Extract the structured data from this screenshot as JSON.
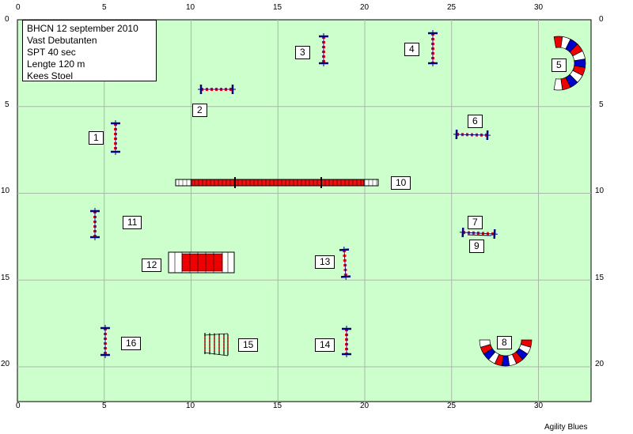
{
  "info": {
    "lines": [
      "BHCN 12 september 2010",
      "Vast Debutanten",
      "SPT 40 sec",
      "Lengte 120 m",
      "Kees Stoel"
    ]
  },
  "axes": {
    "x_ticks": [
      "0",
      "5",
      "10",
      "15",
      "20",
      "25",
      "30"
    ],
    "y_ticks": [
      "0",
      "5",
      "10",
      "15",
      "20"
    ],
    "x_range": [
      0,
      33
    ],
    "y_range": [
      0,
      22
    ],
    "grid": true
  },
  "colors": {
    "field": "#ccffcc",
    "grid": "#a8b8a8",
    "bar_red": "#ee1111",
    "bar_white": "#ffffff",
    "pole_blue": "#000080",
    "tunnel_red": "#ee0000",
    "tunnel_blue": "#0000cc"
  },
  "labels": [
    {
      "text": "1"
    },
    {
      "text": "2"
    },
    {
      "text": "3"
    },
    {
      "text": "4"
    },
    {
      "text": "5"
    },
    {
      "text": "6"
    },
    {
      "text": "7"
    },
    {
      "text": "8"
    },
    {
      "text": "9"
    },
    {
      "text": "10"
    },
    {
      "text": "11"
    },
    {
      "text": "12"
    },
    {
      "text": "13"
    },
    {
      "text": "14"
    },
    {
      "text": "15"
    },
    {
      "text": "16"
    }
  ],
  "footer": {
    "credit": "Agility Blues"
  }
}
